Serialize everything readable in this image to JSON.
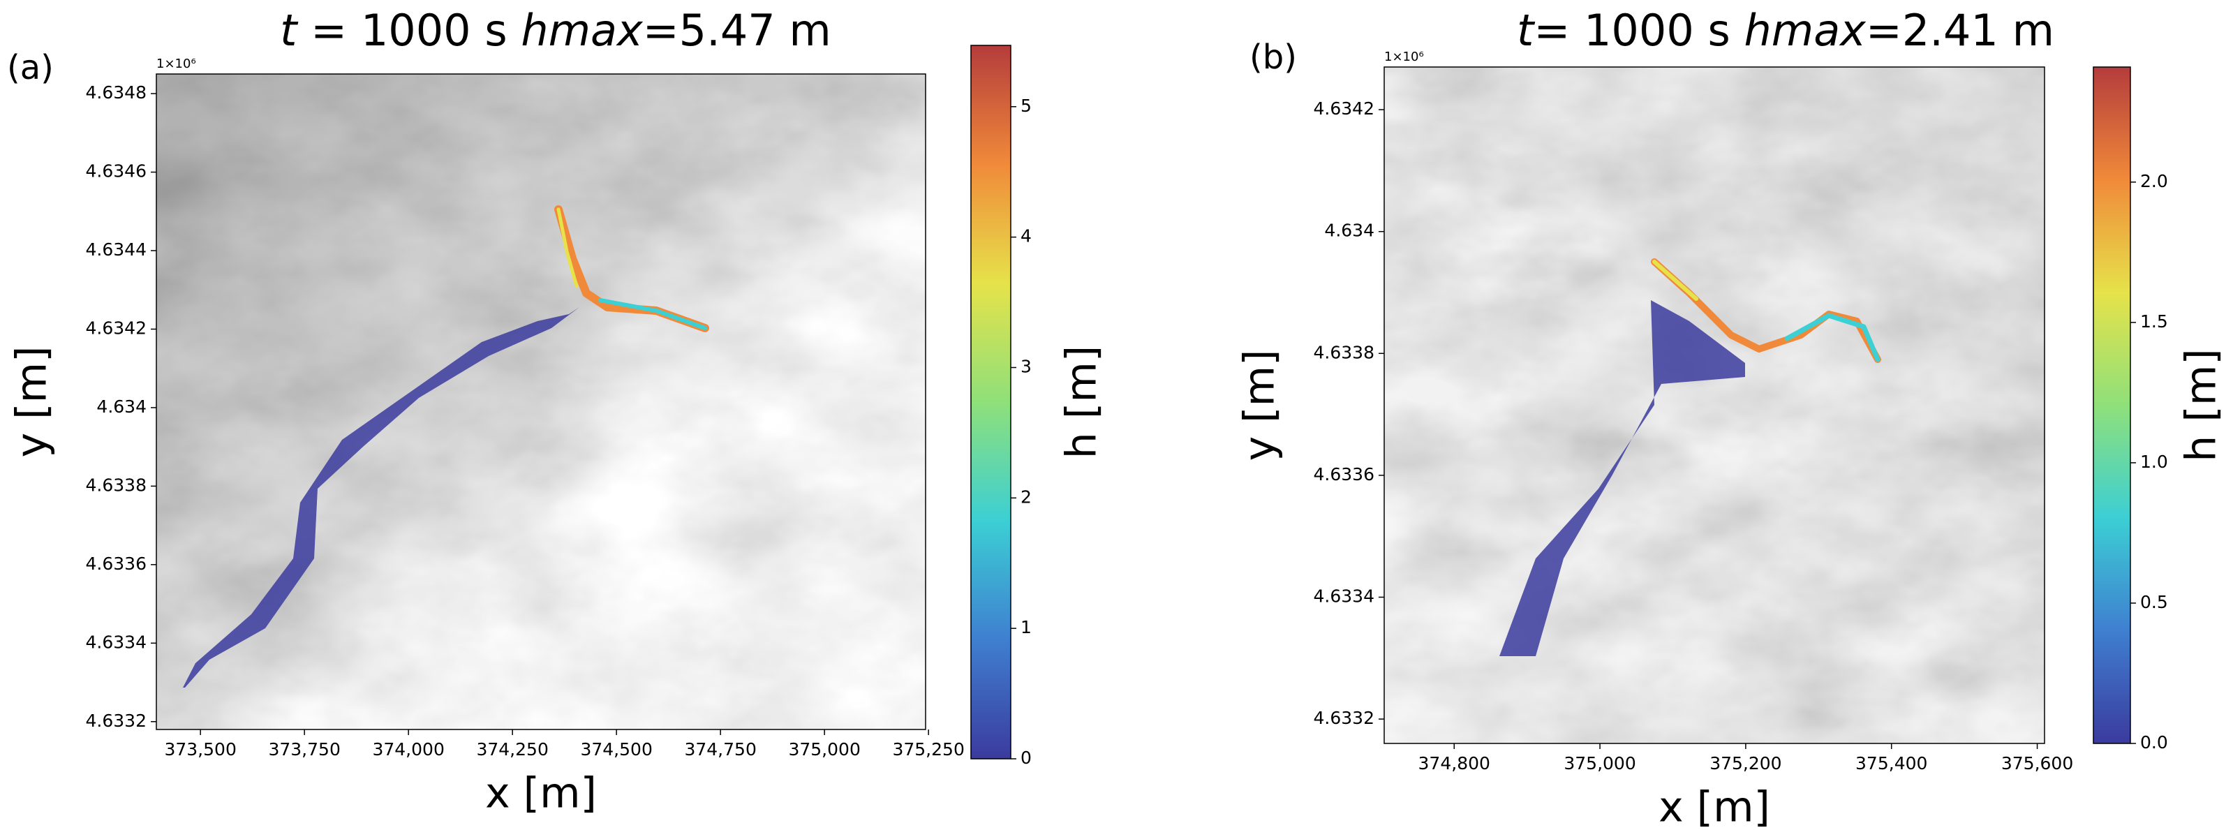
{
  "chart_data": [
    {
      "type": "heatmap",
      "panel_label": "(a)",
      "title_parts": [
        "t",
        " = 1000 s    ",
        "hmax",
        "=5.47 m"
      ],
      "xlabel": "x [m]",
      "ylabel": "y [m]",
      "offset_text": "1×10⁶",
      "xlim": [
        373394,
        375243
      ],
      "xticks": [
        {
          "value": 373500,
          "label": "373,500"
        },
        {
          "value": 373750,
          "label": "373,750"
        },
        {
          "value": 374000,
          "label": "374,000"
        },
        {
          "value": 374250,
          "label": "374,250"
        },
        {
          "value": 374500,
          "label": "374,500"
        },
        {
          "value": 374750,
          "label": "374,750"
        },
        {
          "value": 375000,
          "label": "375,000"
        },
        {
          "value": 375250,
          "label": "375,250"
        }
      ],
      "ylim": [
        4.63318,
        4.63485
      ],
      "yticks": [
        4.6332,
        4.6334,
        4.6336,
        4.6338,
        4.634,
        4.6342,
        4.6344,
        4.6346,
        4.6348
      ],
      "colorbar": {
        "label": "h [m]",
        "lim": [
          0,
          5.47
        ],
        "ticks": [
          0,
          1,
          2,
          3,
          4,
          5
        ]
      },
      "colormap": [
        "#3b3b9e",
        "#3f7fd0",
        "#3ccfd4",
        "#8fe07a",
        "#e6e24a",
        "#f08a3a",
        "#b43c3c"
      ]
    },
    {
      "type": "heatmap",
      "panel_label": "(b)",
      "title_parts": [
        "t",
        "= 1000 s    ",
        "hmax",
        "=2.41 m"
      ],
      "xlabel": "x [m]",
      "ylabel": "y [m]",
      "offset_text": "1×10⁶",
      "xlim": [
        374704,
        375610
      ],
      "xticks": [
        {
          "value": 374800,
          "label": "374,800"
        },
        {
          "value": 375000,
          "label": "375,000"
        },
        {
          "value": 375200,
          "label": "375,200"
        },
        {
          "value": 375400,
          "label": "375,400"
        },
        {
          "value": 375600,
          "label": "375,600"
        }
      ],
      "ylim": [
        4.63316,
        4.63427
      ],
      "yticks": [
        4.6332,
        4.6334,
        4.6336,
        4.6338,
        4.634,
        4.6342
      ],
      "colorbar": {
        "label": "h [m]",
        "lim": [
          0,
          2.41
        ],
        "ticks": [
          {
            "value": 0,
            "label": "0.0"
          },
          {
            "value": 0.5,
            "label": "0.5"
          },
          {
            "value": 1,
            "label": "1.0"
          },
          {
            "value": 1.5,
            "label": "1.5"
          },
          {
            "value": 2,
            "label": "2.0"
          }
        ]
      },
      "colormap": [
        "#3b3b9e",
        "#3f7fd0",
        "#3ccfd4",
        "#8fe07a",
        "#e6e24a",
        "#f08a3a",
        "#b43c3c"
      ]
    }
  ]
}
